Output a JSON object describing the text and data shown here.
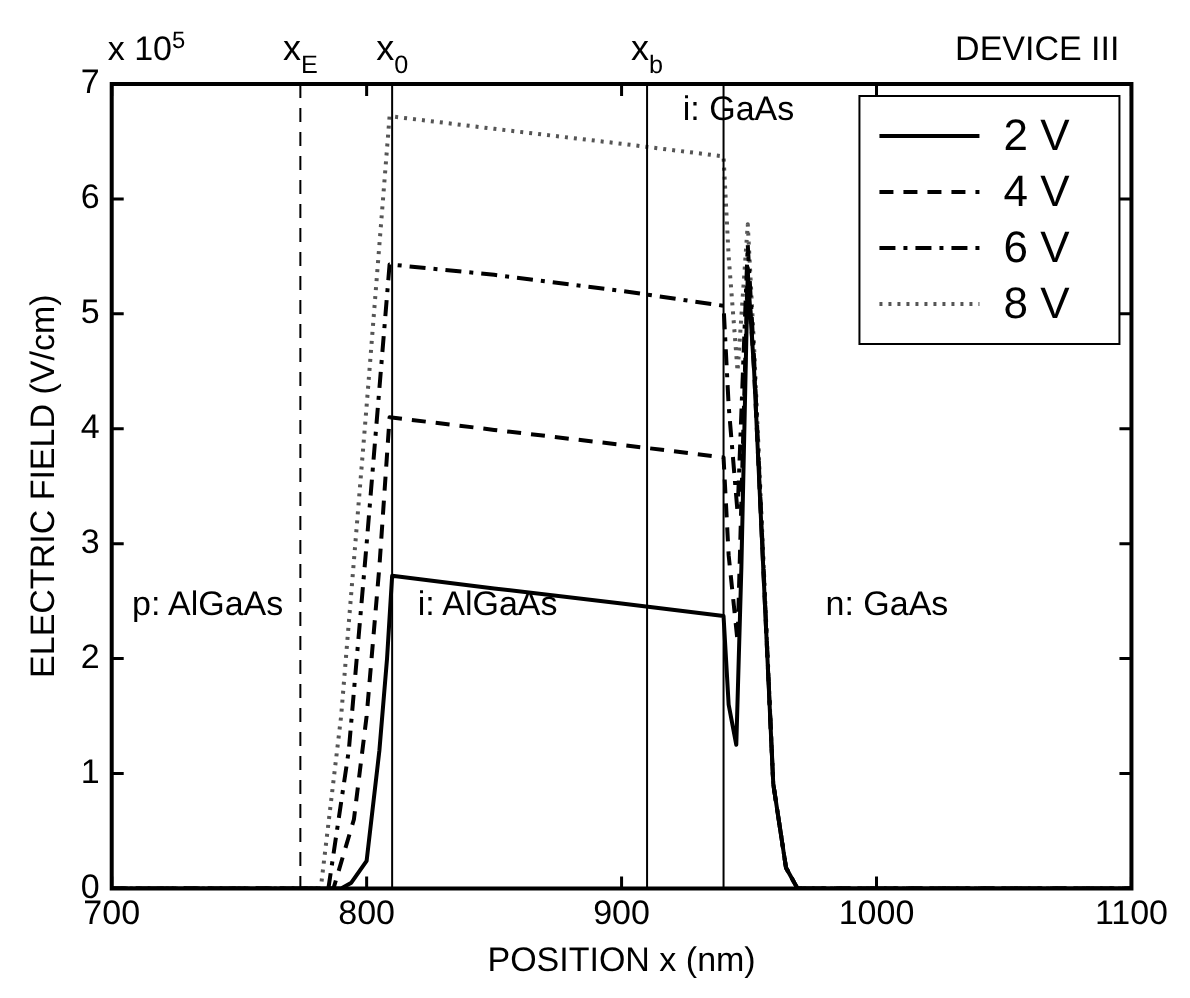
{
  "chart_data": {
    "type": "line",
    "title": "DEVICE III",
    "xlabel": "POSITION x (nm)",
    "ylabel": "ELECTRIC FIELD (V/cm)",
    "xlim": [
      700,
      1100
    ],
    "xticks": [
      700,
      800,
      900,
      1000,
      1100
    ],
    "ylim": [
      0,
      7
    ],
    "yticks": [
      0,
      1,
      2,
      3,
      4,
      5,
      6,
      7
    ],
    "grid": false,
    "legend": "top right",
    "marker": "none",
    "series": [
      {
        "name": "2 V",
        "color": "#000000",
        "line_style": "solid",
        "x": [
          700,
          790,
          794,
          800,
          805,
          808,
          810,
          850,
          900,
          940,
          942,
          945,
          947,
          949.5,
          952,
          959.5,
          964.5,
          969,
          1100
        ],
        "values": [
          0,
          0,
          0.05,
          0.24,
          1.2,
          2.0,
          2.72,
          2.61,
          2.48,
          2.37,
          1.6,
          1.25,
          2.8,
          5.36,
          4.5,
          0.91,
          0.18,
          0,
          0
        ]
      },
      {
        "name": "4 V",
        "color": "#000000",
        "line_style": "dashed",
        "x": [
          700,
          787,
          795,
          800,
          805,
          809,
          850,
          900,
          940,
          942,
          945.5,
          949.5,
          952,
          959.5,
          964.5,
          969,
          1100
        ],
        "values": [
          0,
          0,
          0.6,
          1.5,
          2.8,
          4.1,
          3.99,
          3.86,
          3.75,
          2.9,
          2.15,
          5.4,
          4.5,
          0.91,
          0.18,
          0,
          0
        ]
      },
      {
        "name": "6 V",
        "color": "#000000",
        "line_style": "dashdot",
        "x": [
          700,
          785,
          793,
          800,
          809,
          850,
          900,
          940,
          942,
          945.5,
          949.5,
          952,
          959.5,
          964.5,
          969,
          1100
        ],
        "values": [
          0,
          0,
          1.2,
          3.0,
          5.43,
          5.34,
          5.2,
          5.07,
          4.2,
          3.27,
          5.6,
          4.6,
          0.91,
          0.18,
          0,
          0
        ]
      },
      {
        "name": "8 V",
        "color": "#555555",
        "line_style": "dotted",
        "x": [
          700,
          782,
          790,
          800,
          809,
          850,
          900,
          940,
          942,
          945.5,
          949.5,
          952,
          959.5,
          964.5,
          969,
          1100
        ],
        "values": [
          0,
          0,
          1.5,
          4.2,
          6.72,
          6.61,
          6.48,
          6.37,
          5.5,
          4.5,
          5.78,
          4.7,
          0.91,
          0.18,
          0,
          0
        ]
      }
    ],
    "ref_lines": [
      {
        "axis": "x",
        "value": 774,
        "label": "x$_{E}$",
        "line_style": "dashed"
      },
      {
        "axis": "x",
        "value": 810,
        "label": "x$_{0}$"
      },
      {
        "axis": "x",
        "value": 910,
        "label": "x$_{b}$"
      },
      {
        "axis": "x",
        "value": 940,
        "label": null
      }
    ],
    "annotations": [
      "x 10$^{5}$",
      "p: AlGaAs",
      "i: AlGaAs",
      "n: GaAs",
      "i: GaAs"
    ]
  }
}
